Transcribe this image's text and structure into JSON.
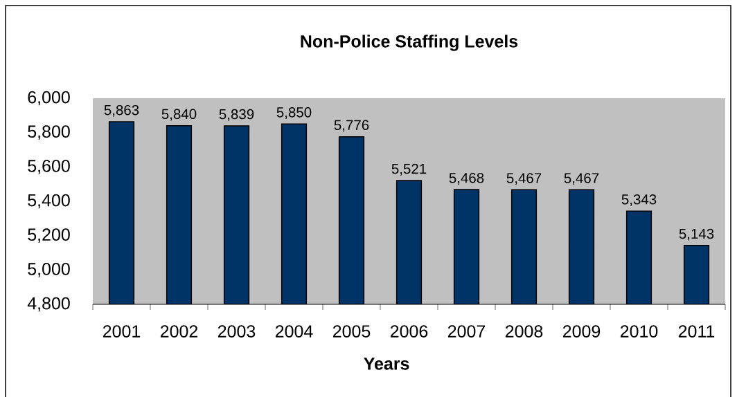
{
  "chart_data": {
    "type": "bar",
    "title": "Non-Police Staffing Levels",
    "xlabel": "Years",
    "categories": [
      "2001",
      "2002",
      "2003",
      "2004",
      "2005",
      "2006",
      "2007",
      "2008",
      "2009",
      "2010",
      "2011"
    ],
    "values": [
      5863,
      5840,
      5839,
      5850,
      5776,
      5521,
      5468,
      5467,
      5467,
      5343,
      5143
    ],
    "value_labels": [
      "5,863",
      "5,840",
      "5,839",
      "5,850",
      "5,776",
      "5,521",
      "5,468",
      "5,467",
      "5,467",
      "5,343",
      "5,143"
    ],
    "color": "#003366",
    "ylim": [
      4800,
      6000
    ],
    "yticks": [
      {
        "value": 4800,
        "label": "4,800"
      },
      {
        "value": 5000,
        "label": "5,000"
      },
      {
        "value": 5200,
        "label": "5,200"
      },
      {
        "value": 5400,
        "label": "5,400"
      },
      {
        "value": 5600,
        "label": "5,600"
      },
      {
        "value": 5800,
        "label": "5,800"
      },
      {
        "value": 6000,
        "label": "6,000"
      }
    ]
  }
}
